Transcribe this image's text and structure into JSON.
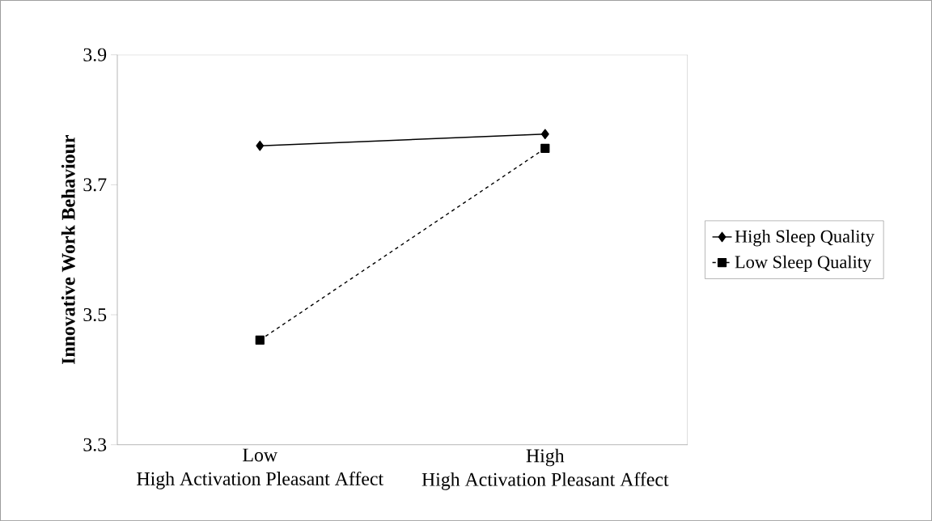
{
  "chart_data": {
    "type": "line",
    "ylabel": "Innovative Work Behaviour",
    "categories": [
      "Low\nHigh Activation Pleasant Affect",
      "High\nHigh Activation Pleasant Affect"
    ],
    "series": [
      {
        "name": "High Sleep Quality",
        "color": "#000000",
        "values": [
          3.76,
          3.778
        ],
        "marker": "diamond",
        "line_style": "solid"
      },
      {
        "name": "Low Sleep Quality",
        "color": "#000000",
        "values": [
          3.461,
          3.756
        ],
        "marker": "square",
        "line_style": "dashed"
      }
    ],
    "ylim": [
      3.3,
      3.9
    ],
    "yticks": [
      3.3,
      3.5,
      3.7,
      3.9
    ],
    "grid": false,
    "legend": "right"
  }
}
